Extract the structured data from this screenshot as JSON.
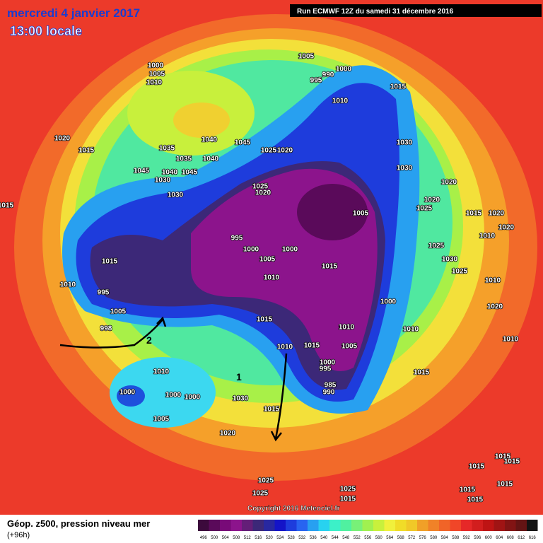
{
  "header": {
    "date": "mercredi 4 janvier 2017",
    "time": "13:00 locale",
    "run": "Run ECMWF 12Z du samedi 31 décembre 2016"
  },
  "footer": {
    "title": "Géop. z500, pression niveau mer",
    "lead": "(+96h)",
    "copyright": "Copyright 2016 Meteociel.fr"
  },
  "legend": {
    "ticks": [
      496,
      500,
      504,
      508,
      512,
      516,
      520,
      524,
      528,
      532,
      536,
      540,
      544,
      548,
      552,
      556,
      560,
      564,
      568,
      572,
      576,
      580,
      584,
      588,
      592,
      596,
      600,
      604,
      608,
      612,
      616
    ],
    "colors": [
      "#3c0a3c",
      "#5a0a5a",
      "#780a78",
      "#8c148c",
      "#641e78",
      "#3c2878",
      "#2828a0",
      "#1414c8",
      "#1e3cdc",
      "#2864f0",
      "#28a0f0",
      "#28d2f0",
      "#3cf0c8",
      "#50f0a0",
      "#78f078",
      "#a0f050",
      "#c8f03c",
      "#f0f03c",
      "#f0dc28",
      "#f0c828",
      "#f0a028",
      "#f08228",
      "#f06428",
      "#f04628",
      "#e62828",
      "#d21e1e",
      "#be1414",
      "#a01414",
      "#821414",
      "#641414",
      "#141414"
    ]
  },
  "annotations": [
    "1",
    "2"
  ],
  "isobars": [
    "1000",
    "1005",
    "1010",
    "1020",
    "1015",
    "1035",
    "1040",
    "1045",
    "1035",
    "1040",
    "1045",
    "1040",
    "1045",
    "1030",
    "1030",
    "1025",
    "1020",
    "1025",
    "1020",
    "1005",
    "990",
    "1000",
    "995",
    "1010",
    "1015",
    "1030",
    "1030",
    "1020",
    "1025",
    "1020",
    "1015",
    "1020",
    "1010",
    "1020",
    "1025",
    "1030",
    "1025",
    "1010",
    "1020",
    "1010",
    "1005",
    "995",
    "1000",
    "1000",
    "1005",
    "1010",
    "1015",
    "1000",
    "1015",
    "1010",
    "1010",
    "1015",
    "1005",
    "1010",
    "995",
    "1000",
    "985",
    "990",
    "1015",
    "1015",
    "1010",
    "995",
    "1005",
    "998",
    "1010",
    "1000",
    "1000",
    "1000",
    "1005",
    "1030",
    "1015",
    "1020",
    "1015",
    "1025",
    "1025",
    "1025",
    "1015",
    "1015",
    "1015",
    "1015",
    "1015",
    "1015",
    "1015"
  ]
}
